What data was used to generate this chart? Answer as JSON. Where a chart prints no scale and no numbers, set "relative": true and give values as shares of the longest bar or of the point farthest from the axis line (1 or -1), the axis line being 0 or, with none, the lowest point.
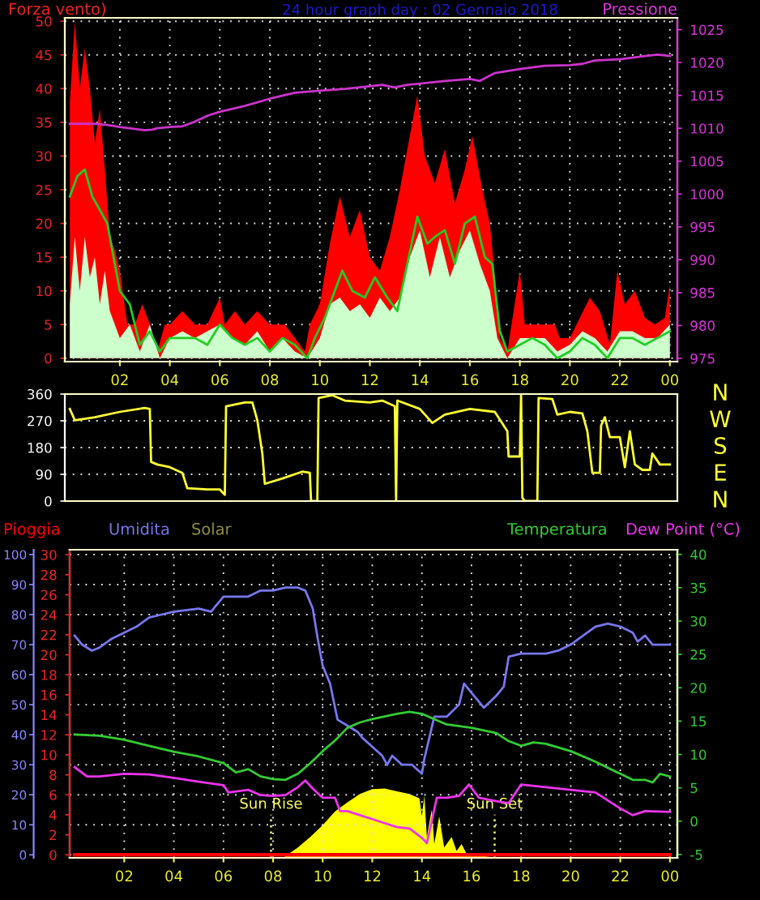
{
  "chart_data": [
    {
      "type": "area",
      "title": "24 hour graph day : 02 Gennaio 2018",
      "ylabel": "Forza vento)",
      "y2label": "Pressione",
      "grid": true,
      "xlim": [
        "2018-01-01T23:48",
        "2018-01-03T00:18"
      ],
      "xticks": [
        {
          "value": "2018-01-02T02:00",
          "label": "02"
        },
        {
          "value": "2018-01-02T04:00",
          "label": "04"
        },
        {
          "value": "2018-01-02T06:00",
          "label": "06"
        },
        {
          "value": "2018-01-02T08:00",
          "label": "08"
        },
        {
          "value": "2018-01-02T10:00",
          "label": "10"
        },
        {
          "value": "2018-01-02T12:00",
          "label": "12"
        },
        {
          "value": "2018-01-02T14:00",
          "label": "14"
        },
        {
          "value": "2018-01-02T16:00",
          "label": "16"
        },
        {
          "value": "2018-01-02T18:00",
          "label": "18"
        },
        {
          "value": "2018-01-02T20:00",
          "label": "20"
        },
        {
          "value": "2018-01-02T22:00",
          "label": "22"
        },
        {
          "value": "2018-01-03T00:00",
          "label": "00"
        }
      ],
      "ylim": [
        -0.5,
        50.5
      ],
      "yticks": [
        0,
        5,
        10,
        15,
        20,
        25,
        30,
        35,
        40,
        45,
        50
      ],
      "y2lim": [
        974.5,
        1026.8
      ],
      "y2ticks": [
        975,
        980,
        985,
        990,
        995,
        1000,
        1005,
        1010,
        1015,
        1020,
        1025
      ],
      "series": [
        {
          "color": "#ff0000",
          "x": [
            "2018-01-02T00:00",
            "2018-01-02T00:12",
            "2018-01-02T00:24",
            "2018-01-02T00:36",
            "2018-01-02T00:48",
            "2018-01-02T01:00",
            "2018-01-02T01:12",
            "2018-01-02T01:24",
            "2018-01-02T01:36",
            "2018-01-02T01:48",
            "2018-01-02T02:00",
            "2018-01-02T02:18",
            "2018-01-02T02:36",
            "2018-01-02T02:54",
            "2018-01-02T03:12",
            "2018-01-02T03:30",
            "2018-01-02T03:48",
            "2018-01-02T04:00",
            "2018-01-02T04:30",
            "2018-01-02T05:00",
            "2018-01-02T05:30",
            "2018-01-02T06:00",
            "2018-01-02T06:12",
            "2018-01-02T06:36",
            "2018-01-02T07:00",
            "2018-01-02T07:30",
            "2018-01-02T08:00",
            "2018-01-02T08:36",
            "2018-01-02T09:00",
            "2018-01-02T09:24",
            "2018-01-02T09:36",
            "2018-01-02T10:00",
            "2018-01-02T10:24",
            "2018-01-02T10:48",
            "2018-01-02T11:12",
            "2018-01-02T11:36",
            "2018-01-02T12:00",
            "2018-01-02T12:24",
            "2018-01-02T12:48",
            "2018-01-02T13:12",
            "2018-01-02T13:36",
            "2018-01-02T13:54",
            "2018-01-02T14:12",
            "2018-01-02T14:36",
            "2018-01-02T15:00",
            "2018-01-02T15:24",
            "2018-01-02T15:48",
            "2018-01-02T16:06",
            "2018-01-02T16:30",
            "2018-01-02T16:48",
            "2018-01-02T17:00",
            "2018-01-02T17:12",
            "2018-01-02T17:30",
            "2018-01-02T18:00",
            "2018-01-02T18:12",
            "2018-01-02T18:36",
            "2018-01-02T19:00",
            "2018-01-02T19:24",
            "2018-01-02T19:36",
            "2018-01-02T20:00",
            "2018-01-02T20:24",
            "2018-01-02T20:48",
            "2018-01-02T21:12",
            "2018-01-02T21:36",
            "2018-01-02T21:54",
            "2018-01-02T22:12",
            "2018-01-02T22:36",
            "2018-01-02T23:00",
            "2018-01-02T23:24",
            "2018-01-02T23:48",
            "2018-01-03T00:00"
          ],
          "values": [
            38,
            50,
            40,
            46,
            40,
            32,
            37,
            28,
            18,
            16,
            13,
            5,
            5,
            8,
            5,
            1,
            5,
            5,
            7,
            5,
            5,
            9,
            5,
            7,
            5,
            7,
            5,
            5,
            3,
            1,
            5,
            8,
            17,
            24,
            18,
            22,
            15,
            13,
            18,
            25,
            33,
            39,
            30,
            26,
            31,
            23,
            28,
            33,
            25,
            20,
            12,
            3,
            1,
            13,
            5,
            5,
            5,
            5,
            3,
            3,
            6,
            9,
            7,
            2,
            13,
            8,
            10,
            6,
            5,
            6,
            11
          ]
        },
        {
          "color": "#ccffcc",
          "x": [
            "2018-01-02T00:00",
            "2018-01-02T00:12",
            "2018-01-02T00:24",
            "2018-01-02T00:36",
            "2018-01-02T00:48",
            "2018-01-02T01:00",
            "2018-01-02T01:12",
            "2018-01-02T01:24",
            "2018-01-02T01:36",
            "2018-01-02T01:48",
            "2018-01-02T02:00",
            "2018-01-02T02:24",
            "2018-01-02T02:48",
            "2018-01-02T03:12",
            "2018-01-02T03:36",
            "2018-01-02T04:00",
            "2018-01-02T04:30",
            "2018-01-02T05:00",
            "2018-01-02T05:30",
            "2018-01-02T06:00",
            "2018-01-02T06:30",
            "2018-01-02T07:00",
            "2018-01-02T07:30",
            "2018-01-02T08:00",
            "2018-01-02T08:30",
            "2018-01-02T09:00",
            "2018-01-02T09:30",
            "2018-01-02T10:00",
            "2018-01-02T10:24",
            "2018-01-02T10:48",
            "2018-01-02T11:12",
            "2018-01-02T11:36",
            "2018-01-02T12:00",
            "2018-01-02T12:24",
            "2018-01-02T12:48",
            "2018-01-02T13:12",
            "2018-01-02T13:36",
            "2018-01-02T14:00",
            "2018-01-02T14:24",
            "2018-01-02T14:48",
            "2018-01-02T15:12",
            "2018-01-02T15:36",
            "2018-01-02T16:00",
            "2018-01-02T16:24",
            "2018-01-02T16:48",
            "2018-01-02T17:06",
            "2018-01-02T17:30",
            "2018-01-02T18:00",
            "2018-01-02T18:30",
            "2018-01-02T19:00",
            "2018-01-02T19:30",
            "2018-01-02T20:00",
            "2018-01-02T20:30",
            "2018-01-02T21:00",
            "2018-01-02T21:30",
            "2018-01-02T22:00",
            "2018-01-02T22:30",
            "2018-01-02T23:00",
            "2018-01-02T23:30",
            "2018-01-03T00:00"
          ],
          "values": [
            8,
            18,
            10,
            18,
            12,
            15,
            8,
            13,
            7,
            5,
            3,
            5,
            1,
            5,
            0,
            3,
            4,
            3,
            4,
            5,
            3,
            2,
            4,
            1,
            3,
            1,
            0,
            3,
            8,
            9,
            7,
            8,
            6,
            9,
            7,
            9,
            15,
            19,
            12,
            18,
            12,
            16,
            19,
            14,
            10,
            3,
            0,
            3,
            3,
            3,
            1,
            2,
            4,
            3,
            1,
            4,
            4,
            3,
            3,
            5
          ]
        },
        {
          "type": "line",
          "color": "#22cc22",
          "x": [
            "2018-01-02T00:00",
            "2018-01-02T00:18",
            "2018-01-02T00:36",
            "2018-01-02T00:54",
            "2018-01-02T01:12",
            "2018-01-02T01:30",
            "2018-01-02T01:48",
            "2018-01-02T02:00",
            "2018-01-02T02:24",
            "2018-01-02T02:48",
            "2018-01-02T03:12",
            "2018-01-02T03:36",
            "2018-01-02T04:00",
            "2018-01-02T04:30",
            "2018-01-02T05:00",
            "2018-01-02T05:30",
            "2018-01-02T06:00",
            "2018-01-02T06:30",
            "2018-01-02T07:00",
            "2018-01-02T07:30",
            "2018-01-02T08:00",
            "2018-01-02T08:30",
            "2018-01-02T09:00",
            "2018-01-02T09:30",
            "2018-01-02T09:48",
            "2018-01-02T10:12",
            "2018-01-02T10:30",
            "2018-01-02T10:54",
            "2018-01-02T11:18",
            "2018-01-02T11:48",
            "2018-01-02T12:12",
            "2018-01-02T12:42",
            "2018-01-02T13:06",
            "2018-01-02T13:30",
            "2018-01-02T13:54",
            "2018-01-02T14:18",
            "2018-01-02T14:36",
            "2018-01-02T15:00",
            "2018-01-02T15:24",
            "2018-01-02T15:48",
            "2018-01-02T16:12",
            "2018-01-02T16:36",
            "2018-01-02T16:54",
            "2018-01-02T17:12",
            "2018-01-02T17:30",
            "2018-01-02T18:00",
            "2018-01-02T18:30",
            "2018-01-02T19:00",
            "2018-01-02T19:30",
            "2018-01-02T20:00",
            "2018-01-02T20:30",
            "2018-01-02T21:00",
            "2018-01-02T21:30",
            "2018-01-02T22:00",
            "2018-01-02T22:30",
            "2018-01-02T23:00",
            "2018-01-02T23:30",
            "2018-01-03T00:00"
          ],
          "values": [
            24,
            27,
            28,
            24,
            22,
            20,
            14,
            10,
            8,
            2,
            4,
            1,
            3,
            3,
            3,
            2,
            5,
            3,
            2,
            3,
            1,
            3,
            2,
            0,
            3,
            6,
            9,
            13,
            10,
            9,
            12,
            9,
            7,
            14,
            21,
            17,
            18,
            19,
            14,
            20,
            21,
            15,
            14,
            4,
            1,
            2,
            3,
            2,
            0,
            1,
            3,
            2,
            0,
            3,
            3,
            2,
            3,
            4
          ]
        },
        {
          "type": "line",
          "axis": "y2",
          "color": "#cc33cc",
          "x": [
            "2018-01-02T00:00",
            "2018-01-02T01:00",
            "2018-01-02T01:30",
            "2018-01-02T02:00",
            "2018-01-02T03:00",
            "2018-01-02T03:18",
            "2018-01-02T03:30",
            "2018-01-02T04:00",
            "2018-01-02T04:30",
            "2018-01-02T05:00",
            "2018-01-02T05:30",
            "2018-01-02T06:00",
            "2018-01-02T07:00",
            "2018-01-02T08:00",
            "2018-01-02T09:00",
            "2018-01-02T10:00",
            "2018-01-02T11:00",
            "2018-01-02T12:00",
            "2018-01-02T12:30",
            "2018-01-02T13:00",
            "2018-01-02T13:30",
            "2018-01-02T14:00",
            "2018-01-02T15:00",
            "2018-01-02T16:00",
            "2018-01-02T16:24",
            "2018-01-02T17:00",
            "2018-01-02T18:00",
            "2018-01-02T19:00",
            "2018-01-02T20:00",
            "2018-01-02T20:30",
            "2018-01-02T21:00",
            "2018-01-02T22:00",
            "2018-01-02T23:00",
            "2018-01-02T23:30",
            "2018-01-03T00:00"
          ],
          "values": [
            1010.7,
            1010.7,
            1010.5,
            1010.2,
            1009.7,
            1009.8,
            1010,
            1010.2,
            1010.3,
            1011,
            1011.9,
            1012.5,
            1013.4,
            1014.5,
            1015.4,
            1015.7,
            1016,
            1016.4,
            1016.6,
            1016.2,
            1016.6,
            1016.8,
            1017.2,
            1017.5,
            1017.2,
            1018.4,
            1019,
            1019.5,
            1019.6,
            1019.8,
            1020.3,
            1020.5,
            1021,
            1021.2,
            1021
          ]
        }
      ]
    },
    {
      "type": "line",
      "grid": "y",
      "xlim": [
        "2018-01-01T23:48",
        "2018-01-03T00:18"
      ],
      "ylim": [
        0,
        360
      ],
      "yticks": [
        0,
        90,
        180,
        270,
        360
      ],
      "annotations": [
        "N",
        "W",
        "S",
        "E",
        "N"
      ],
      "series": [
        {
          "color": "#ffff33",
          "x": [
            "2018-01-02T00:00",
            "2018-01-02T00:12",
            "2018-01-02T01:00",
            "2018-01-02T02:00",
            "2018-01-02T03:00",
            "2018-01-02T03:12",
            "2018-01-02T03:15",
            "2018-01-02T03:30",
            "2018-01-02T04:00",
            "2018-01-02T04:30",
            "2018-01-02T04:42",
            "2018-01-02T05:30",
            "2018-01-02T06:00",
            "2018-01-02T06:12",
            "2018-01-02T06:15",
            "2018-01-02T07:00",
            "2018-01-02T07:18",
            "2018-01-02T07:30",
            "2018-01-02T07:42",
            "2018-01-02T07:48",
            "2018-01-02T08:30",
            "2018-01-02T09:18",
            "2018-01-02T09:36",
            "2018-01-02T09:39",
            "2018-01-02T09:54",
            "2018-01-02T09:57",
            "2018-01-02T10:30",
            "2018-01-02T11:00",
            "2018-01-02T12:00",
            "2018-01-02T12:30",
            "2018-01-02T13:00",
            "2018-01-02T13:03",
            "2018-01-02T13:06",
            "2018-01-02T14:00",
            "2018-01-02T14:30",
            "2018-01-02T15:00",
            "2018-01-02T16:00",
            "2018-01-02T17:00",
            "2018-01-02T17:30",
            "2018-01-02T17:33",
            "2018-01-02T18:00",
            "2018-01-02T18:03",
            "2018-01-02T18:06",
            "2018-01-02T18:12",
            "2018-01-02T18:42",
            "2018-01-02T18:45",
            "2018-01-02T19:18",
            "2018-01-02T19:30",
            "2018-01-02T20:00",
            "2018-01-02T20:30",
            "2018-01-02T20:42",
            "2018-01-02T20:54",
            "2018-01-02T21:12",
            "2018-01-02T21:15",
            "2018-01-02T21:24",
            "2018-01-02T21:36",
            "2018-01-02T22:00",
            "2018-01-02T22:12",
            "2018-01-02T22:24",
            "2018-01-02T22:36",
            "2018-01-02T22:54",
            "2018-01-02T23:12",
            "2018-01-02T23:18",
            "2018-01-02T23:36",
            "2018-01-03T00:00"
          ],
          "values": [
            310,
            272,
            282,
            300,
            313,
            310,
            132,
            123,
            114,
            95,
            43,
            39,
            39,
            21,
            319,
            332,
            332,
            272,
            160,
            58,
            76,
            99,
            95,
            0,
            0,
            347,
            356,
            338,
            332,
            338,
            319,
            0,
            338,
            310,
            263,
            291,
            310,
            300,
            235,
            150,
            150,
            360,
            11,
            0,
            0,
            347,
            343,
            291,
            300,
            295,
            235,
            95,
            95,
            254,
            282,
            215,
            215,
            114,
            235,
            123,
            105,
            105,
            160,
            123,
            123
          ]
        }
      ]
    },
    {
      "type": "line",
      "grid": true,
      "xlim": [
        "2018-01-01T23:48",
        "2018-01-03T00:18"
      ],
      "xticks": [
        {
          "value": "2018-01-02T02:00",
          "label": "02"
        },
        {
          "value": "2018-01-02T04:00",
          "label": "04"
        },
        {
          "value": "2018-01-02T06:00",
          "label": "06"
        },
        {
          "value": "2018-01-02T08:00",
          "label": "08"
        },
        {
          "value": "2018-01-02T10:00",
          "label": "10"
        },
        {
          "value": "2018-01-02T12:00",
          "label": "12"
        },
        {
          "value": "2018-01-02T14:00",
          "label": "14"
        },
        {
          "value": "2018-01-02T16:00",
          "label": "16"
        },
        {
          "value": "2018-01-02T18:00",
          "label": "18"
        },
        {
          "value": "2018-01-02T20:00",
          "label": "20"
        },
        {
          "value": "2018-01-02T22:00",
          "label": "22"
        },
        {
          "value": "2018-01-03T00:00",
          "label": "00"
        }
      ],
      "ylim": [
        -1,
        101.6
      ],
      "yticks": [
        0,
        10,
        20,
        30,
        40,
        50,
        60,
        70,
        80,
        90,
        100
      ],
      "y3lim": [
        -0.3,
        30.5
      ],
      "y3ticks": [
        0,
        2,
        4,
        6,
        8,
        10,
        12,
        14,
        16,
        18,
        20,
        22,
        24,
        26,
        28,
        30
      ],
      "y2lim": [
        -5.5,
        40.7
      ],
      "y2ticks": [
        -5,
        0,
        5,
        10,
        15,
        20,
        25,
        30,
        35,
        40
      ],
      "ref_lines": [
        {
          "axis": "x",
          "value": "2018-01-02T07:55",
          "label": "Sun Rise",
          "color": "#ffff66",
          "line_style": "dotted"
        },
        {
          "axis": "x",
          "value": "2018-01-02T16:56",
          "label": "Sun Set",
          "color": "#ffff66",
          "line_style": "dotted"
        }
      ],
      "series": [
        {
          "name": "Umidita",
          "color": "#7777ee",
          "x": [
            "2018-01-02T00:00",
            "2018-01-02T00:18",
            "2018-01-02T00:42",
            "2018-01-02T01:00",
            "2018-01-02T01:30",
            "2018-01-02T02:00",
            "2018-01-02T02:30",
            "2018-01-02T03:00",
            "2018-01-02T03:30",
            "2018-01-02T04:00",
            "2018-01-02T05:00",
            "2018-01-02T05:30",
            "2018-01-02T06:00",
            "2018-01-02T07:00",
            "2018-01-02T07:30",
            "2018-01-02T08:00",
            "2018-01-02T08:30",
            "2018-01-02T09:00",
            "2018-01-02T09:18",
            "2018-01-02T09:36",
            "2018-01-02T09:48",
            "2018-01-02T10:00",
            "2018-01-02T10:18",
            "2018-01-02T10:36",
            "2018-01-02T11:00",
            "2018-01-02T11:24",
            "2018-01-02T11:36",
            "2018-01-02T12:00",
            "2018-01-02T12:24",
            "2018-01-02T12:36",
            "2018-01-02T12:48",
            "2018-01-02T13:12",
            "2018-01-02T13:36",
            "2018-01-02T14:00",
            "2018-01-02T14:06",
            "2018-01-02T14:18",
            "2018-01-02T14:30",
            "2018-01-02T15:00",
            "2018-01-02T15:30",
            "2018-01-02T15:42",
            "2018-01-02T16:00",
            "2018-01-02T16:30",
            "2018-01-02T17:00",
            "2018-01-02T17:18",
            "2018-01-02T17:30",
            "2018-01-02T18:00",
            "2018-01-02T19:00",
            "2018-01-02T19:30",
            "2018-01-02T20:00",
            "2018-01-02T20:30",
            "2018-01-02T21:00",
            "2018-01-02T21:30",
            "2018-01-02T22:00",
            "2018-01-02T22:30",
            "2018-01-02T22:42",
            "2018-01-02T23:00",
            "2018-01-02T23:18",
            "2018-01-03T00:00"
          ],
          "values": [
            73,
            70,
            68,
            69,
            72,
            74,
            76,
            79,
            80,
            81,
            82,
            81,
            86,
            86,
            88,
            88,
            89,
            89,
            88,
            82,
            72,
            63,
            57,
            45,
            43,
            41,
            39,
            36,
            33,
            30,
            33,
            30,
            30,
            27,
            32,
            39,
            46,
            46,
            50,
            57,
            54,
            49,
            53,
            56,
            66,
            67,
            67,
            68,
            70,
            73,
            76,
            77,
            76,
            74,
            71,
            73,
            70,
            70
          ]
        },
        {
          "name": "Pioggia",
          "axis": "y3",
          "color": "#ff0000",
          "x": [
            "2018-01-02T00:00",
            "2018-01-03T00:00"
          ],
          "values": [
            0,
            0
          ]
        },
        {
          "name": "Temperatura",
          "axis": "y2",
          "color": "#33cc33",
          "x": [
            "2018-01-02T00:00",
            "2018-01-02T01:00",
            "2018-01-02T02:00",
            "2018-01-02T03:00",
            "2018-01-02T04:00",
            "2018-01-02T05:00",
            "2018-01-02T06:00",
            "2018-01-02T06:30",
            "2018-01-02T07:00",
            "2018-01-02T07:30",
            "2018-01-02T08:00",
            "2018-01-02T08:30",
            "2018-01-02T09:00",
            "2018-01-02T09:30",
            "2018-01-02T10:00",
            "2018-01-02T10:30",
            "2018-01-02T11:00",
            "2018-01-02T11:30",
            "2018-01-02T12:00",
            "2018-01-02T13:00",
            "2018-01-02T13:30",
            "2018-01-02T14:00",
            "2018-01-02T14:30",
            "2018-01-02T15:00",
            "2018-01-02T16:00",
            "2018-01-02T17:00",
            "2018-01-02T17:30",
            "2018-01-02T18:00",
            "2018-01-02T18:30",
            "2018-01-02T19:00",
            "2018-01-02T20:00",
            "2018-01-02T21:00",
            "2018-01-02T22:00",
            "2018-01-02T22:30",
            "2018-01-02T23:00",
            "2018-01-02T23:18",
            "2018-01-02T23:36",
            "2018-01-03T00:00"
          ],
          "values": [
            13,
            12.8,
            12.2,
            11.3,
            10.4,
            9.7,
            8.7,
            7.3,
            7.8,
            6.7,
            6.3,
            6.2,
            7.1,
            8.7,
            10.5,
            12.1,
            14,
            14.8,
            15.3,
            16.1,
            16.4,
            16.1,
            15.3,
            14.5,
            14,
            13.2,
            12,
            11.3,
            11.8,
            11.6,
            10.5,
            8.9,
            7.1,
            6.2,
            6.2,
            5.8,
            7.1,
            6.7
          ]
        },
        {
          "name": "Dew Point (°C)",
          "axis": "y2",
          "color": "#ee33ee",
          "x": [
            "2018-01-02T00:00",
            "2018-01-02T00:30",
            "2018-01-02T01:00",
            "2018-01-02T02:00",
            "2018-01-02T03:00",
            "2018-01-02T04:00",
            "2018-01-02T05:00",
            "2018-01-02T06:00",
            "2018-01-02T06:12",
            "2018-01-02T07:00",
            "2018-01-02T07:30",
            "2018-01-02T08:00",
            "2018-01-02T08:30",
            "2018-01-02T09:00",
            "2018-01-02T09:18",
            "2018-01-02T09:36",
            "2018-01-02T10:00",
            "2018-01-02T10:30",
            "2018-01-02T10:42",
            "2018-01-02T11:00",
            "2018-01-02T11:30",
            "2018-01-02T12:00",
            "2018-01-02T12:30",
            "2018-01-02T13:00",
            "2018-01-02T13:30",
            "2018-01-02T14:00",
            "2018-01-02T14:12",
            "2018-01-02T14:24",
            "2018-01-02T14:36",
            "2018-01-02T15:00",
            "2018-01-02T15:30",
            "2018-01-02T15:54",
            "2018-01-02T16:18",
            "2018-01-02T17:00",
            "2018-01-02T17:30",
            "2018-01-02T18:00",
            "2018-01-02T19:00",
            "2018-01-02T20:00",
            "2018-01-02T21:00",
            "2018-01-02T22:00",
            "2018-01-02T22:30",
            "2018-01-02T23:00",
            "2018-01-03T00:00"
          ],
          "values": [
            8.1,
            6.7,
            6.7,
            7.1,
            7,
            6.5,
            5.9,
            5.4,
            4.3,
            4.7,
            3.9,
            3.8,
            3.9,
            5.1,
            6.1,
            4.9,
            3.5,
            3.5,
            1.5,
            1.5,
            0.9,
            0.3,
            -0.3,
            -0.9,
            -1.1,
            -2.5,
            -3.3,
            0,
            3.5,
            3.5,
            3.8,
            5.5,
            3.5,
            3,
            2.7,
            5.5,
            5.1,
            4.7,
            4.3,
            1.9,
            0.9,
            1.5,
            1.4
          ]
        }
      ]
    },
    {
      "type": "area",
      "relative": true,
      "xlim": [
        "2018-01-01T23:48",
        "2018-01-03T00:18"
      ],
      "series": [
        {
          "name": "Solar",
          "color": "#ffff00",
          "x": [
            "2018-01-02T08:24",
            "2018-01-02T09:00",
            "2018-01-02T09:30",
            "2018-01-02T10:00",
            "2018-01-02T10:30",
            "2018-01-02T11:00",
            "2018-01-02T11:30",
            "2018-01-02T12:00",
            "2018-01-02T12:30",
            "2018-01-02T13:00",
            "2018-01-02T13:30",
            "2018-01-02T13:54",
            "2018-01-02T14:00",
            "2018-01-02T14:06",
            "2018-01-02T14:12",
            "2018-01-02T14:24",
            "2018-01-02T14:30",
            "2018-01-02T14:42",
            "2018-01-02T14:54",
            "2018-01-02T15:12",
            "2018-01-02T15:24",
            "2018-01-02T15:36",
            "2018-01-02T15:48",
            "2018-01-02T16:12",
            "2018-01-02T16:36",
            "2018-01-02T17:00"
          ],
          "values": [
            0,
            0.15,
            0.3,
            0.47,
            0.67,
            0.8,
            0.92,
            0.99,
            1,
            0.96,
            0.92,
            0.86,
            0.6,
            0.9,
            0.3,
            0.7,
            0.2,
            0.6,
            0.15,
            0.3,
            0.1,
            0.2,
            0.06,
            0.04,
            0.02,
            0
          ]
        }
      ]
    }
  ]
}
